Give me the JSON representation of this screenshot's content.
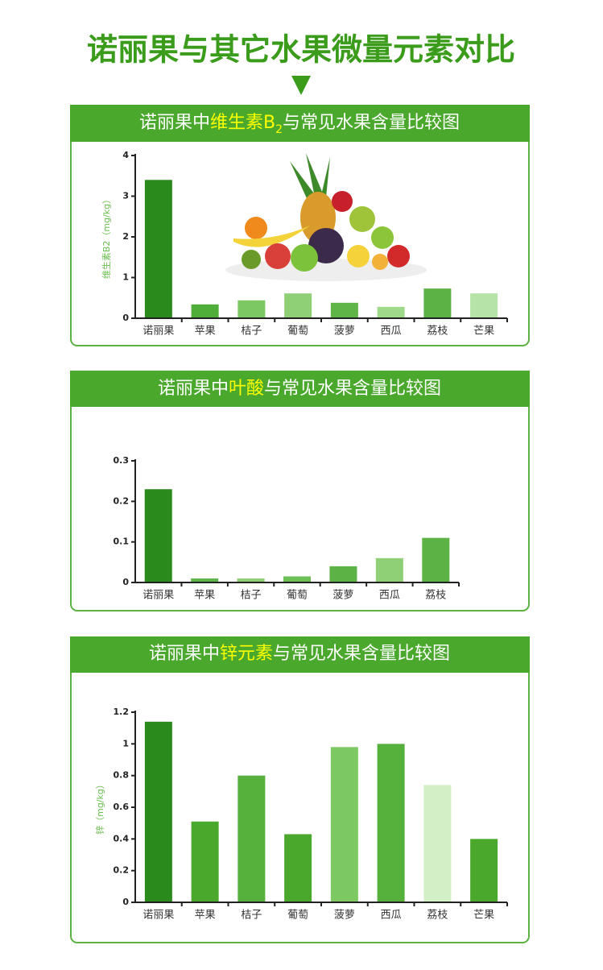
{
  "page_title": "诺丽果与其它水果微量元素对比",
  "chart_data": [
    {
      "type": "bar",
      "title_parts": [
        {
          "text": "诺丽果中",
          "color": "#ffffff"
        },
        {
          "text": "维生素B",
          "color": "#ffff00"
        },
        {
          "text": "2",
          "color": "#ffff00",
          "sub": true
        },
        {
          "text": "与常见水果含量比较图",
          "color": "#ffffff"
        }
      ],
      "ylabel": "维生素B2（mg/kg）",
      "categories": [
        "诺丽果",
        "苹果",
        "桔子",
        "葡萄",
        "菠萝",
        "西瓜",
        "荔枝",
        "芒果"
      ],
      "values": [
        3.4,
        0.34,
        0.44,
        0.61,
        0.38,
        0.28,
        0.73,
        0.61
      ],
      "colors": [
        "#2a8a1c",
        "#4fae3a",
        "#7cc964",
        "#8fd077",
        "#5fb548",
        "#9fd98a",
        "#5cb244",
        "#b6e3a6"
      ],
      "ylim": [
        0,
        4
      ],
      "yticks": [
        0,
        1,
        2,
        3,
        4
      ]
    },
    {
      "type": "bar",
      "title_parts": [
        {
          "text": "诺丽果中",
          "color": "#ffffff"
        },
        {
          "text": "叶酸",
          "color": "#ffff00"
        },
        {
          "text": "与常见水果含量比较图",
          "color": "#ffffff"
        }
      ],
      "categories": [
        "诺丽果",
        "苹果",
        "桔子",
        "葡萄",
        "菠萝",
        "西瓜",
        "荔枝"
      ],
      "values": [
        0.23,
        0.01,
        0.01,
        0.015,
        0.04,
        0.06,
        0.11
      ],
      "colors": [
        "#2a8a1c",
        "#5fb548",
        "#8fd077",
        "#6cbf52",
        "#5cb244",
        "#8fd077",
        "#5cb244"
      ],
      "ylim": [
        0,
        0.3
      ],
      "yticks": [
        0,
        0.1,
        0.2,
        0.3
      ]
    },
    {
      "type": "bar",
      "title_parts": [
        {
          "text": "诺丽果中",
          "color": "#ffffff"
        },
        {
          "text": "锌元素",
          "color": "#ffff00"
        },
        {
          "text": "与常见水果含量比较图",
          "color": "#ffffff"
        }
      ],
      "ylabel": "锌（mg/kg）",
      "categories": [
        "诺丽果",
        "苹果",
        "桔子",
        "葡萄",
        "菠萝",
        "西瓜",
        "荔枝",
        "芒果"
      ],
      "values": [
        1.14,
        0.51,
        0.8,
        0.43,
        0.98,
        1.0,
        0.74,
        0.4
      ],
      "colors": [
        "#2a8a1c",
        "#4aa82c",
        "#55b03c",
        "#4aa82c",
        "#7cc964",
        "#55b03c",
        "#d2efc6",
        "#4aa82c"
      ],
      "ylim": [
        0,
        1.2
      ],
      "yticks": [
        0,
        0.2,
        0.4,
        0.6,
        0.8,
        1,
        1.2
      ]
    }
  ]
}
